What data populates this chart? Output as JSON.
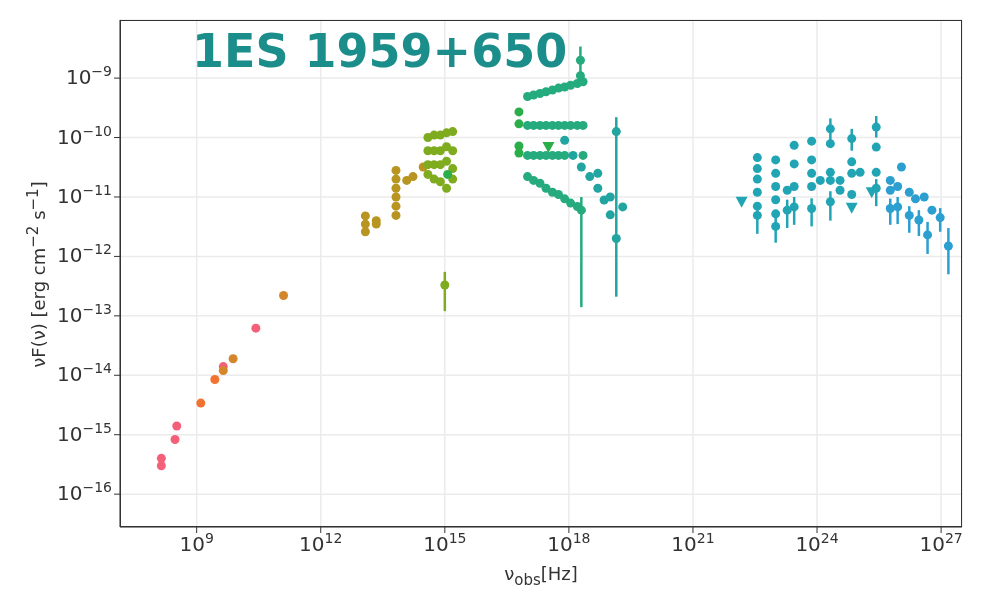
{
  "chart_data": {
    "type": "scatter",
    "title": "1ES 1959+650",
    "xlabel": "ν$_{obs}$[Hz]",
    "ylabel": "νF(ν) [erg cm$^{−2}$ s$^{−1}$]",
    "log": "xy",
    "grid": true,
    "marker": "circle",
    "xlim": [
      14000000.0,
      3.2e+27
    ],
    "ylim": [
      2.8e-17,
      9.5e-09
    ],
    "xticks": [
      {
        "value": 1000000000.0,
        "label": "10$^{9}$"
      },
      {
        "value": 1000000000000.0,
        "label": "10$^{12}$"
      },
      {
        "value": 1000000000000000.0,
        "label": "10$^{15}$"
      },
      {
        "value": 1e+18,
        "label": "10$^{18}$"
      },
      {
        "value": 1e+21,
        "label": "10$^{21}$"
      },
      {
        "value": 1e+24,
        "label": "10$^{24}$"
      },
      {
        "value": 1e+27,
        "label": "10$^{27}$"
      }
    ],
    "yticks": [
      {
        "value": 1e-16,
        "label": "10$^{−16}$"
      },
      {
        "value": 1e-15,
        "label": "10$^{−15}$"
      },
      {
        "value": 1e-14,
        "label": "10$^{−14}$"
      },
      {
        "value": 1e-13,
        "label": "10$^{−13}$"
      },
      {
        "value": 1e-12,
        "label": "10$^{−12}$"
      },
      {
        "value": 1e-11,
        "label": "10$^{−11}$"
      },
      {
        "value": 1e-10,
        "label": "10$^{−10}$"
      },
      {
        "value": 1e-09,
        "label": "10$^{−9}$"
      }
    ],
    "series": [
      {
        "color": "#f4607a",
        "x": [
          140000000.0,
          140000000.0,
          330000000.0,
          300000000.0,
          4400000000.0,
          27000000000.0
        ],
        "values": [
          4e-16,
          3e-16,
          1.4e-15,
          8.3e-16,
          1.4e-14,
          6.2e-14
        ]
      },
      {
        "color": "#f27330",
        "x": [
          1260000000.0,
          2750000000.0
        ],
        "values": [
          3.4e-15,
          8.5e-15
        ]
      },
      {
        "color": "#d4862a",
        "x": [
          4400000000.0,
          7600000000.0,
          126000000000.0
        ],
        "values": [
          1.2e-14,
          1.9e-14,
          2.2e-13
        ]
      },
      {
        "color": "#b89420",
        "x": [
          12000000000000.0,
          12000000000000.0,
          12000000000000.0,
          22000000000000.0,
          22000000000000.0,
          66000000000000.0,
          66000000000000.0,
          66000000000000.0,
          66000000000000.0,
          66000000000000.0,
          66000000000000.0,
          120000000000000.0,
          170000000000000.0,
          300000000000000.0
        ],
        "values": [
          4.8e-12,
          3.5e-12,
          2.6e-12,
          4e-12,
          3.5e-12,
          2.8e-11,
          2e-11,
          1.4e-11,
          1e-11,
          7e-12,
          4.9e-12,
          1.9e-11,
          2.2e-11,
          3.2e-11
        ]
      },
      {
        "color": "#7fab1e",
        "x": [
          390000000000000.0,
          390000000000000.0,
          390000000000000.0,
          390000000000000.0,
          550000000000000.0,
          550000000000000.0,
          550000000000000.0,
          550000000000000.0,
          780000000000000.0,
          780000000000000.0,
          780000000000000.0,
          780000000000000.0,
          1100000000000000.0,
          1100000000000000.0,
          1100000000000000.0,
          1100000000000000.0,
          1550000000000000.0,
          1550000000000000.0,
          1550000000000000.0,
          1550000000000000.0,
          1000000000000000.0
        ],
        "values": [
          1e-10,
          6e-11,
          3.5e-11,
          2.4e-11,
          1.1e-10,
          6e-11,
          3.5e-11,
          2e-11,
          1.1e-10,
          6e-11,
          3.5e-11,
          1.8e-11,
          1.2e-10,
          7e-11,
          4e-11,
          1.4e-11,
          1.26e-10,
          6e-11,
          3e-11,
          2e-11,
          3.3e-13
        ],
        "errors": [
          null,
          null,
          null,
          null,
          null,
          null,
          null,
          null,
          null,
          null,
          null,
          null,
          null,
          null,
          null,
          null,
          null,
          null,
          null,
          null,
          [
            1.2e-13,
            5.5e-13
          ]
        ]
      },
      {
        "color": "#2aae4a",
        "x": [
          1170000000000000.0,
          6.2e+16,
          6.2e+16,
          6.2e+16,
          6.2e+16
        ],
        "values": [
          2.4e-11,
          2.7e-10,
          1.7e-10,
          7.2e-11,
          5.5e-11
        ]
      },
      {
        "color": "#2aae4a",
        "marker": "triangle",
        "x": [
          3.2e+17
        ],
        "values": [
          6.9e-11
        ]
      },
      {
        "color": "#25ab7d",
        "x": [
          1e+17,
          1e+17,
          1e+17,
          1e+17,
          1.4e+17,
          1.4e+17,
          1.4e+17,
          1.4e+17,
          2e+17,
          2e+17,
          2e+17,
          2e+17,
          2.8e+17,
          2.8e+17,
          2.8e+17,
          2.8e+17,
          4e+17,
          4e+17,
          4e+17,
          4e+17,
          5.6e+17,
          5.6e+17,
          5.6e+17,
          5.6e+17,
          7.9e+17,
          7.9e+17,
          7.9e+17,
          7.9e+17,
          1.1e+18,
          1.1e+18,
          1.1e+18,
          1.6e+18,
          1.6e+18,
          1.6e+18,
          2.2e+18,
          2.2e+18,
          2.2e+18,
          1.9e+18,
          1.9e+18,
          2e+18
        ],
        "values": [
          4.9e-10,
          1.6e-10,
          5e-11,
          2.2e-11,
          5.2e-10,
          1.6e-10,
          5e-11,
          1.9e-11,
          5.5e-10,
          1.6e-10,
          5e-11,
          1.7e-11,
          5.9e-10,
          1.6e-10,
          5e-11,
          1.4e-11,
          6.3e-10,
          1.6e-10,
          5e-11,
          1.2e-11,
          6.8e-10,
          1.6e-10,
          5e-11,
          1.1e-11,
          7.1e-10,
          1.6e-10,
          5e-11,
          9.3e-12,
          7.6e-10,
          1.6e-10,
          7.9e-12,
          8.1e-10,
          1.6e-10,
          6.9e-12,
          8.7e-10,
          1.6e-10,
          5e-11,
          2e-09,
          1.1e-09,
          6e-12
        ],
        "errors": [
          null,
          null,
          null,
          null,
          null,
          null,
          null,
          null,
          null,
          null,
          null,
          null,
          null,
          null,
          null,
          null,
          null,
          null,
          null,
          null,
          null,
          null,
          null,
          null,
          null,
          null,
          null,
          null,
          null,
          null,
          null,
          null,
          null,
          null,
          null,
          null,
          null,
          [
            1.1e-09,
            3.4e-09
          ],
          null,
          [
            1.4e-13,
            1e-11
          ]
        ]
      },
      {
        "color": "#22a5a0",
        "x": [
          7.9e+17,
          1.26e+18,
          2e+18,
          3.2e+18,
          5e+18,
          5e+18,
          7.1e+18,
          1e+19,
          1e+19,
          1.4e+19,
          1.4e+19,
          2e+19
        ],
        "values": [
          9e-11,
          5e-11,
          3.2e-11,
          2.2e-11,
          1.4e-11,
          2.5e-11,
          8.9e-12,
          5e-12,
          1e-11,
          2e-12,
          1.26e-10,
          6.8e-12
        ],
        "errors": [
          null,
          null,
          null,
          null,
          null,
          null,
          null,
          null,
          null,
          null,
          [
            2.1e-13,
            2.2e-10
          ],
          null
        ]
      },
      {
        "color": "#21a5b5",
        "x": [
          3.6e+22,
          3.6e+22,
          3.6e+22,
          3.6e+22,
          3.6e+22,
          3.6e+22,
          1e+23,
          1e+23,
          1e+23,
          1e+23,
          1e+23,
          1e+23,
          1.9e+23,
          1.9e+23,
          2.8e+23,
          2.8e+23,
          2.8e+23,
          2.8e+23,
          7.4e+23,
          7.4e+23,
          7.4e+23,
          7.4e+23,
          7.4e+23,
          1.2e+24,
          2.1e+24,
          2.1e+24,
          2.1e+24,
          2.1e+24,
          2.1e+24,
          3.6e+24,
          3.6e+24,
          6.9e+24,
          6.9e+24,
          6.9e+24,
          6.9e+24,
          1.1e+25,
          2.7e+25,
          2.7e+25,
          2.7e+25,
          2.7e+25
        ],
        "values": [
          4.6e-11,
          3e-11,
          2e-11,
          1.2e-11,
          7e-12,
          4.9e-12,
          4.2e-11,
          2.5e-11,
          1.5e-11,
          9e-12,
          5.2e-12,
          3.2e-12,
          1.3e-11,
          6e-12,
          7.4e-11,
          3.6e-11,
          1.5e-11,
          6.8e-12,
          8.7e-11,
          4.2e-11,
          2.5e-11,
          1.5e-11,
          6.4e-12,
          1.9e-11,
          1.4e-10,
          7.9e-11,
          2.6e-11,
          1.9e-11,
          8.3e-12,
          1.9e-11,
          1.3e-11,
          9.6e-11,
          3.9e-11,
          2.5e-11,
          1.1e-11,
          2.6e-11,
          1.5e-10,
          6.9e-11,
          2.6e-11,
          1.4e-11
        ],
        "errors": [
          null,
          null,
          null,
          null,
          null,
          [
            2.4e-12,
            7e-12
          ],
          null,
          null,
          null,
          null,
          null,
          [
            1.7e-12,
            4.7e-12
          ],
          null,
          [
            3e-12,
            9e-12
          ],
          null,
          null,
          null,
          [
            3.4e-12,
            1e-11
          ],
          null,
          null,
          null,
          null,
          [
            3.2e-12,
            9.5e-12
          ],
          null,
          [
            9e-11,
            2.1e-10
          ],
          null,
          null,
          null,
          [
            4e-12,
            1.25e-11
          ],
          null,
          null,
          [
            6e-11,
            1.4e-10
          ],
          null,
          null,
          null,
          null,
          [
            1e-10,
            2.3e-10
          ],
          null,
          null,
          [
            7e-12,
            2e-11
          ]
        ]
      },
      {
        "color": "#21a5b5",
        "marker": "triangle",
        "x": [
          1.5e+22,
          6.9e+24,
          2.1e+25
        ],
        "values": [
          8.3e-12,
          6.6e-12,
          1.2e-11
        ]
      },
      {
        "color": "#2a9fd0",
        "x": [
          5.9e+25,
          5.9e+25,
          5.9e+25,
          8.9e+25,
          8.9e+25,
          1.1e+26,
          1.7e+26,
          1.7e+26,
          2.4e+26,
          2.9e+26,
          3.9e+26,
          4.7e+26,
          6e+26,
          9.5e+26,
          1.5e+27
        ],
        "values": [
          1.9e-11,
          1.3e-11,
          6.4e-12,
          1.5e-11,
          6.8e-12,
          3.2e-11,
          1.2e-11,
          4.9e-12,
          9.3e-12,
          4.1e-12,
          1e-11,
          2.3e-12,
          6e-12,
          4.5e-12,
          1.5e-12
        ],
        "errors": [
          null,
          null,
          [
            3.4e-12,
            9.4e-12
          ],
          null,
          [
            3.5e-12,
            1e-11
          ],
          null,
          null,
          [
            2.5e-12,
            7e-12
          ],
          null,
          [
            2.2e-12,
            6e-12
          ],
          null,
          [
            1.1e-12,
            3.8e-12
          ],
          null,
          [
            2.6e-12,
            6.5e-12
          ],
          [
            5e-13,
            3e-12
          ]
        ]
      }
    ]
  }
}
